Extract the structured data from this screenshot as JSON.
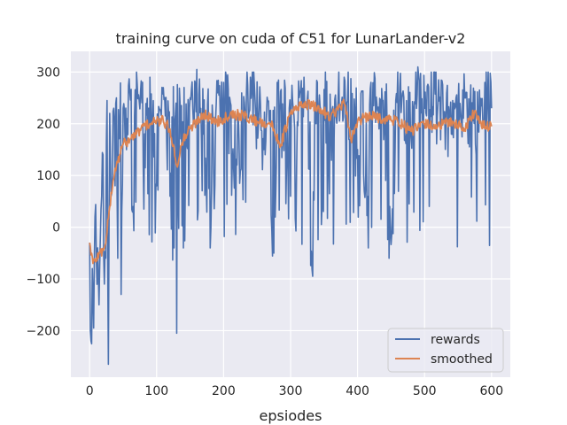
{
  "chart_data": {
    "type": "line",
    "title": "training curve on cuda of C51 for LunarLander-v2",
    "xlabel": "epsiodes",
    "ylabel": "",
    "xlim": [
      -28,
      628
    ],
    "ylim": [
      -290,
      340
    ],
    "xticks": [
      0,
      100,
      200,
      300,
      400,
      500,
      600
    ],
    "yticks": [
      -200,
      -100,
      0,
      100,
      200,
      300
    ],
    "xtick_labels": [
      "0",
      "100",
      "200",
      "300",
      "400",
      "500",
      "600"
    ],
    "ytick_labels": [
      "−200",
      "−100",
      "0",
      "100",
      "200",
      "300"
    ],
    "grid": true,
    "legend_position": "lower-right",
    "colors": {
      "background": "#eaeaf2",
      "grid": "#ffffff",
      "rewards": "#4c72b0",
      "smoothed": "#dd8452"
    },
    "series": [
      {
        "name": "rewards",
        "generator": {
          "n": 601,
          "anchors": [
            [
              0,
              -30
            ],
            [
              2,
              -220
            ],
            [
              4,
              -80
            ],
            [
              6,
              -195
            ],
            [
              8,
              20
            ],
            [
              10,
              -60
            ],
            [
              12,
              -40
            ],
            [
              14,
              -150
            ],
            [
              16,
              -20
            ],
            [
              18,
              60
            ],
            [
              20,
              140
            ],
            [
              22,
              -110
            ],
            [
              24,
              -60
            ],
            [
              26,
              245
            ],
            [
              28,
              -265
            ],
            [
              30,
              220
            ],
            [
              32,
              60
            ],
            [
              34,
              100
            ],
            [
              36,
              230
            ],
            [
              38,
              80
            ],
            [
              40,
              250
            ],
            [
              42,
              -60
            ],
            [
              45,
              180
            ],
            [
              47,
              -130
            ],
            [
              50,
              230
            ],
            [
              55,
              150
            ],
            [
              60,
              260
            ],
            [
              65,
              40
            ],
            [
              70,
              300
            ],
            [
              80,
              120
            ],
            [
              90,
              290
            ],
            [
              100,
              80
            ],
            [
              110,
              270
            ],
            [
              120,
              60
            ],
            [
              126,
              -40
            ],
            [
              130,
              -205
            ],
            [
              135,
              240
            ],
            [
              140,
              -40
            ],
            [
              150,
              250
            ],
            [
              155,
              200
            ],
            [
              160,
              305
            ],
            [
              170,
              180
            ],
            [
              180,
              -40
            ],
            [
              200,
              280
            ],
            [
              220,
              120
            ],
            [
              240,
              290
            ],
            [
              260,
              150
            ],
            [
              275,
              -50
            ],
            [
              280,
              280
            ],
            [
              300,
              60
            ],
            [
              320,
              290
            ],
            [
              333,
              -95
            ],
            [
              340,
              280
            ],
            [
              360,
              200
            ],
            [
              380,
              290
            ],
            [
              400,
              150
            ],
            [
              416,
              -40
            ],
            [
              420,
              280
            ],
            [
              440,
              200
            ],
            [
              447,
              -60
            ],
            [
              460,
              300
            ],
            [
              480,
              170
            ],
            [
              490,
              310
            ],
            [
              500,
              230
            ],
            [
              520,
              240
            ],
            [
              540,
              180
            ],
            [
              560,
              250
            ],
            [
              580,
              200
            ],
            [
              590,
              280
            ],
            [
              600,
              230
            ]
          ],
          "amplitude": 130
        }
      },
      {
        "name": "smoothed",
        "generator": {
          "n": 601,
          "anchors": [
            [
              0,
              -30
            ],
            [
              5,
              -70
            ],
            [
              10,
              -60
            ],
            [
              15,
              -50
            ],
            [
              20,
              -45
            ],
            [
              25,
              -20
            ],
            [
              30,
              40
            ],
            [
              35,
              90
            ],
            [
              40,
              120
            ],
            [
              45,
              140
            ],
            [
              50,
              160
            ],
            [
              55,
              165
            ],
            [
              60,
              170
            ],
            [
              70,
              180
            ],
            [
              80,
              195
            ],
            [
              90,
              200
            ],
            [
              100,
              205
            ],
            [
              110,
              205
            ],
            [
              120,
              190
            ],
            [
              130,
              120
            ],
            [
              140,
              170
            ],
            [
              150,
              190
            ],
            [
              160,
              205
            ],
            [
              170,
              220
            ],
            [
              180,
              210
            ],
            [
              190,
              205
            ],
            [
              200,
              210
            ],
            [
              210,
              220
            ],
            [
              230,
              215
            ],
            [
              250,
              205
            ],
            [
              270,
              200
            ],
            [
              285,
              160
            ],
            [
              300,
              220
            ],
            [
              320,
              240
            ],
            [
              340,
              230
            ],
            [
              360,
              215
            ],
            [
              380,
              240
            ],
            [
              390,
              170
            ],
            [
              400,
              205
            ],
            [
              420,
              215
            ],
            [
              440,
              210
            ],
            [
              460,
              205
            ],
            [
              480,
              185
            ],
            [
              500,
              200
            ],
            [
              520,
              195
            ],
            [
              540,
              205
            ],
            [
              560,
              190
            ],
            [
              575,
              225
            ],
            [
              585,
              195
            ],
            [
              600,
              195
            ]
          ],
          "amplitude": 18
        }
      }
    ]
  }
}
